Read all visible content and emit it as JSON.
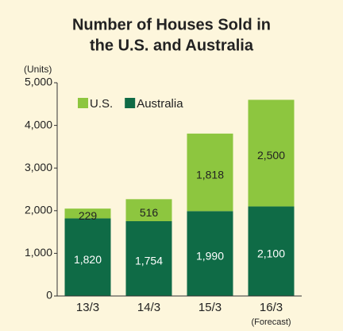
{
  "chart_data": {
    "type": "stacked_bar",
    "title": [
      "Number of Houses Sold in",
      "the U.S. and Australia"
    ],
    "y_unit_label": "(Units)",
    "categories": [
      "13/3",
      "14/3",
      "15/3",
      "16/3"
    ],
    "category_notes": [
      null,
      null,
      null,
      "(Forecast)"
    ],
    "series": [
      {
        "name": "U.S.",
        "color": "#8dc63f",
        "label_color": "#222222",
        "values": [
          229,
          516,
          1818,
          2500
        ],
        "value_labels": [
          "229",
          "516",
          "1,818",
          "2,500"
        ]
      },
      {
        "name": "Australia",
        "color": "#0f6b46",
        "label_color": "#ffffff",
        "values": [
          1820,
          1754,
          1990,
          2100
        ],
        "value_labels": [
          "1,820",
          "1,754",
          "1,990",
          "2,100"
        ]
      }
    ],
    "ylim": [
      0,
      5000
    ],
    "yticks": [
      0,
      {
        "value": 1000,
        "label": "1,000"
      },
      {
        "value": 2000,
        "label": "2,000"
      },
      {
        "value": 3000,
        "label": "3,000"
      },
      {
        "value": 4000,
        "label": "4,000"
      },
      {
        "value": 5000,
        "label": "5,000"
      }
    ],
    "legend": "top-left"
  }
}
